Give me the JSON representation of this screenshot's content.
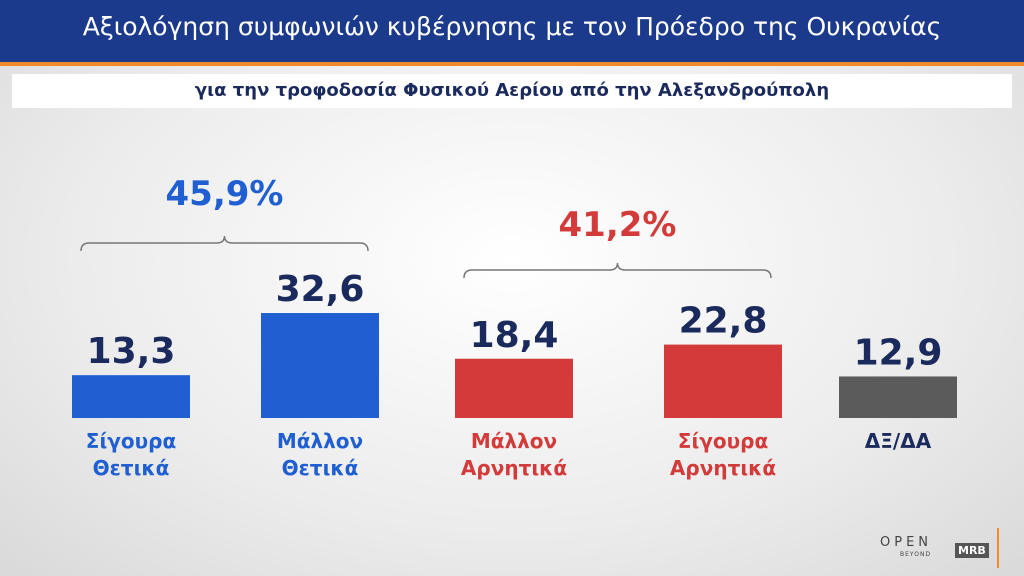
{
  "header": {
    "title": "Αξιολόγηση συμφωνιών κυβέρνησης με τον Πρόεδρο της Ουκρανίας",
    "subtitle": "για την τροφοδοσία Φυσικού Αερίου από την Αλεξανδρούπολη"
  },
  "chart_data": {
    "type": "bar",
    "categories": [
      "Σίγουρα Θετικά",
      "Μάλλον Θετικά",
      "Μάλλον Αρνητικά",
      "Σίγουρα Αρνητικά",
      "ΔΞ/ΔΑ"
    ],
    "values": [
      13.3,
      32.6,
      18.4,
      22.8,
      12.9
    ],
    "value_labels": [
      "13,3",
      "32,6",
      "18,4",
      "22,8",
      "12,9"
    ],
    "colors": [
      "#1f5fd1",
      "#1f5fd1",
      "#d33b3b",
      "#d33b3b",
      "#5b5b5b"
    ],
    "label_colors": [
      "#1f5fd1",
      "#1f5fd1",
      "#d33b3b",
      "#d33b3b",
      "#1b2a5c"
    ],
    "groups": [
      {
        "label": "45,9%",
        "value": 45.9,
        "from": 0,
        "to": 1,
        "color": "#1f5fd1"
      },
      {
        "label": "41,2%",
        "value": 41.2,
        "from": 2,
        "to": 3,
        "color": "#d33b3b"
      }
    ]
  },
  "logos": {
    "open": "OPEN",
    "beyond": "BEYOND",
    "mrb": "MRB"
  }
}
